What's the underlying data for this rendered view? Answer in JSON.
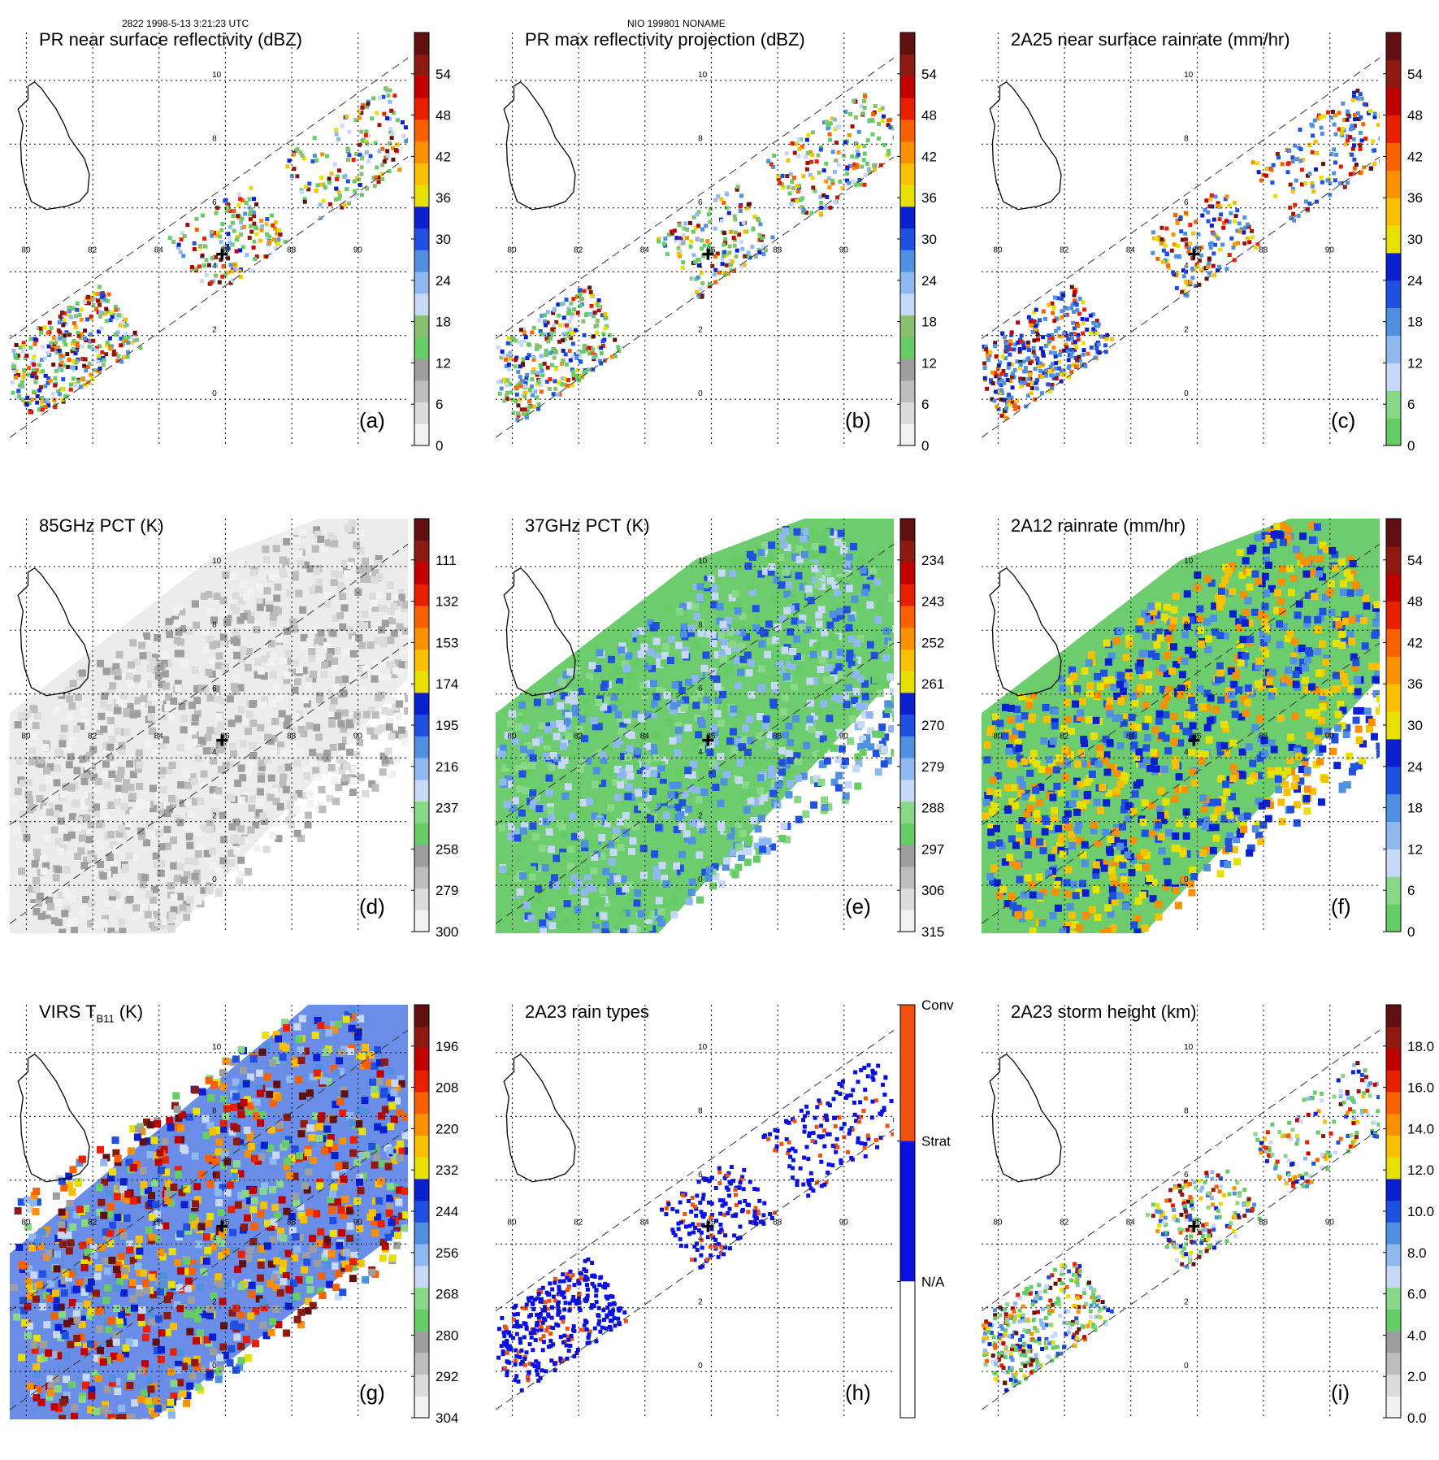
{
  "header": {
    "left": "2822 1998-5-13 3:21:23 UTC",
    "center": "NIO 199801 NONAME"
  },
  "map": {
    "lon_labels": [
      "80",
      "82",
      "84",
      "86",
      "88",
      "90"
    ],
    "lat_labels": [
      "0",
      "2",
      "4",
      "6",
      "8",
      "10"
    ]
  },
  "chart_data": [
    {
      "type": "heatmap",
      "panel_label": "(a)",
      "title": "PR near surface reflectivity (dBZ)",
      "colorbar_ticks": [
        "54",
        "48",
        "42",
        "36",
        "30",
        "24",
        "18",
        "12",
        "6",
        "0"
      ],
      "colorbar_range": [
        0,
        60
      ],
      "swath": "PR",
      "colors": [
        "#f2f2f2",
        "#dcdcdc",
        "#bdbdbd",
        "#9e9e9e",
        "#66cc66",
        "#88c070",
        "#c8d8f8",
        "#90b8f0",
        "#5090e0",
        "#2050e0",
        "#0a20d0",
        "#e8e000",
        "#f8c000",
        "#f89000",
        "#f86000",
        "#e82000",
        "#c00000",
        "#8c1a10",
        "#601010"
      ]
    },
    {
      "type": "heatmap",
      "panel_label": "(b)",
      "title": "PR max reflectivity projection (dBZ)",
      "colorbar_ticks": [
        "54",
        "48",
        "42",
        "36",
        "30",
        "24",
        "18",
        "12",
        "6",
        "0"
      ],
      "colorbar_range": [
        0,
        60
      ],
      "swath": "PR",
      "colors": [
        "#f2f2f2",
        "#dcdcdc",
        "#bdbdbd",
        "#9e9e9e",
        "#66cc66",
        "#88c070",
        "#c8d8f8",
        "#90b8f0",
        "#5090e0",
        "#2050e0",
        "#0a20d0",
        "#e8e000",
        "#f8c000",
        "#f89000",
        "#f86000",
        "#e82000",
        "#c00000",
        "#8c1a10",
        "#601010"
      ]
    },
    {
      "type": "heatmap",
      "panel_label": "(c)",
      "title": "2A25 near surface rainrate (mm/hr)",
      "colorbar_ticks": [
        "54",
        "48",
        "42",
        "36",
        "30",
        "24",
        "18",
        "12",
        "6",
        "0"
      ],
      "colorbar_range": [
        0,
        60
      ],
      "swath": "PR",
      "colors": [
        "#66cc66",
        "#88d888",
        "#c8d8f8",
        "#90b8f0",
        "#5090e0",
        "#2050e0",
        "#0a20d0",
        "#e8e000",
        "#f8c000",
        "#f89000",
        "#f86000",
        "#e82000",
        "#c00000",
        "#8c1a10",
        "#601010"
      ]
    },
    {
      "type": "heatmap",
      "panel_label": "(d)",
      "title": "85GHz PCT (K)",
      "colorbar_ticks": [
        "111",
        "132",
        "153",
        "174",
        "195",
        "216",
        "237",
        "258",
        "279",
        "300"
      ],
      "colorbar_range": [
        300,
        90
      ],
      "swath": "TMI",
      "colors": [
        "#f2f2f2",
        "#dcdcdc",
        "#bdbdbd",
        "#9e9e9e",
        "#66cc66",
        "#88d888",
        "#c8d8f8",
        "#90b8f0",
        "#5090e0",
        "#2050e0",
        "#0a20d0",
        "#e8e000",
        "#f8c000",
        "#f89000",
        "#f86000",
        "#e82000",
        "#c00000",
        "#8c1a10",
        "#601010"
      ]
    },
    {
      "type": "heatmap",
      "panel_label": "(e)",
      "title": "37GHz PCT (K)",
      "colorbar_ticks": [
        "234",
        "243",
        "252",
        "261",
        "270",
        "279",
        "288",
        "297",
        "306",
        "315"
      ],
      "colorbar_range": [
        315,
        225
      ],
      "swath": "TMI",
      "colors": [
        "#f2f2f2",
        "#dcdcdc",
        "#bdbdbd",
        "#9e9e9e",
        "#66cc66",
        "#88d888",
        "#c8d8f8",
        "#90b8f0",
        "#5090e0",
        "#2050e0",
        "#0a20d0",
        "#e8e000",
        "#f8c000",
        "#f89000",
        "#f86000",
        "#e82000",
        "#c00000",
        "#8c1a10",
        "#601010"
      ]
    },
    {
      "type": "heatmap",
      "panel_label": "(f)",
      "title": "2A12 rainrate (mm/hr)",
      "colorbar_ticks": [
        "54",
        "48",
        "42",
        "36",
        "30",
        "24",
        "18",
        "12",
        "6",
        "0"
      ],
      "colorbar_range": [
        0,
        60
      ],
      "swath": "TMI",
      "colors": [
        "#66cc66",
        "#88d888",
        "#c8d8f8",
        "#90b8f0",
        "#5090e0",
        "#2050e0",
        "#0a20d0",
        "#e8e000",
        "#f8c000",
        "#f89000",
        "#f86000",
        "#e82000",
        "#c00000",
        "#8c1a10",
        "#601010"
      ]
    },
    {
      "type": "heatmap",
      "panel_label": "(g)",
      "title": "VIRS T",
      "title_sub": "B11",
      "title_suffix": " (K)",
      "colorbar_ticks": [
        "196",
        "208",
        "220",
        "232",
        "244",
        "256",
        "268",
        "280",
        "292",
        "304"
      ],
      "colorbar_range": [
        304,
        184
      ],
      "swath": "VIRS",
      "colors": [
        "#f2f2f2",
        "#dcdcdc",
        "#bdbdbd",
        "#9e9e9e",
        "#66cc66",
        "#88d888",
        "#c8d8f8",
        "#90b8f0",
        "#5090e0",
        "#2050e0",
        "#0a20d0",
        "#e8e000",
        "#f8c000",
        "#f89000",
        "#f86000",
        "#e82000",
        "#c00000",
        "#8c1a10",
        "#601010"
      ]
    },
    {
      "type": "heatmap",
      "panel_label": "(h)",
      "title": "2A23 rain types",
      "colorbar_ticks": [
        "Conv",
        "Strat",
        "N/A"
      ],
      "categorical": true,
      "swath": "PR",
      "colors": [
        "#ffffff",
        "#0a10e0",
        "#f05010"
      ]
    },
    {
      "type": "heatmap",
      "panel_label": "(i)",
      "title": "2A23 storm height (km)",
      "colorbar_ticks": [
        "18.0",
        "16.0",
        "14.0",
        "12.0",
        "10.0",
        "8.0",
        "6.0",
        "4.0",
        "2.0",
        "0.0"
      ],
      "colorbar_range": [
        0,
        20
      ],
      "swath": "PR",
      "colors": [
        "#f2f2f2",
        "#dcdcdc",
        "#bdbdbd",
        "#9e9e9e",
        "#66cc66",
        "#88d888",
        "#c8d8f8",
        "#90b8f0",
        "#5090e0",
        "#2050e0",
        "#0a20d0",
        "#e8e000",
        "#f8c000",
        "#f89000",
        "#f86000",
        "#e82000",
        "#c00000",
        "#8c1a10",
        "#601010"
      ]
    }
  ]
}
